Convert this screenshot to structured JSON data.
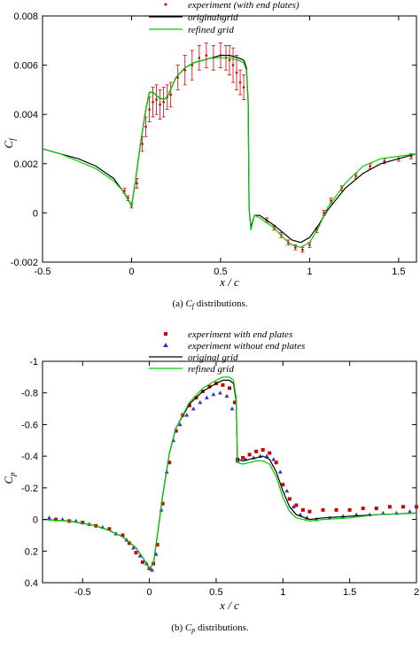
{
  "chart_data": [
    {
      "type": "line",
      "ylabel": "C_f",
      "xlabel": "x / c",
      "xlim": [
        -0.5,
        1.6
      ],
      "ylim": [
        -0.002,
        0.008
      ],
      "xticks": [
        "-0.5",
        "0",
        "0.5",
        "1",
        "1.5"
      ],
      "xtick_values": [
        -0.5,
        0,
        0.5,
        1,
        1.5
      ],
      "yticks": [
        "-0.002",
        "0",
        "0.002",
        "0.004",
        "0.006",
        "0.008"
      ],
      "ytick_values": [
        -0.002,
        0,
        0.002,
        0.004,
        0.006,
        0.008
      ],
      "caption_prefix": "(a) ",
      "caption_sym": "C",
      "caption_sub": "f",
      "caption_suffix": " distributions.",
      "legend_placement": "top-center",
      "series": [
        {
          "name": "experiment (with end plates)",
          "kind": "scatter-errorbar",
          "color": "#cc0000",
          "x": [
            -0.04,
            -0.02,
            0.0,
            0.03,
            0.06,
            0.08,
            0.1,
            0.12,
            0.14,
            0.16,
            0.18,
            0.2,
            0.22,
            0.26,
            0.3,
            0.34,
            0.38,
            0.42,
            0.46,
            0.5,
            0.53,
            0.55,
            0.57,
            0.59,
            0.61,
            0.63,
            0.76,
            0.8,
            0.84,
            0.88,
            0.92,
            0.96,
            1.0,
            1.04,
            1.08,
            1.12,
            1.18,
            1.26,
            1.34,
            1.42,
            1.5,
            1.57
          ],
          "y": [
            0.0009,
            0.0006,
            0.0003,
            0.0012,
            0.0028,
            0.0035,
            0.0042,
            0.0045,
            0.0046,
            0.0044,
            0.0045,
            0.0047,
            0.0048,
            0.0055,
            0.0058,
            0.006,
            0.0063,
            0.0064,
            0.0063,
            0.0064,
            0.0063,
            0.0062,
            0.006,
            0.0057,
            0.0053,
            0.0051,
            -0.0003,
            -0.0006,
            -0.0009,
            -0.0012,
            -0.0014,
            -0.0015,
            -0.0013,
            -0.0007,
            0.0,
            0.0005,
            0.001,
            0.0015,
            0.0019,
            0.0021,
            0.0022,
            0.0023
          ],
          "err": [
            0.0001,
            0.0001,
            0.0001,
            0.0002,
            0.0003,
            0.0004,
            0.0005,
            0.0006,
            0.0006,
            0.0006,
            0.0006,
            0.0005,
            0.0005,
            0.0005,
            0.0006,
            0.0006,
            0.0005,
            0.0005,
            0.0005,
            0.0005,
            0.0005,
            0.0006,
            0.0007,
            0.0007,
            0.0005,
            0.0005,
            0.0001,
            0.0001,
            0.0001,
            0.0001,
            0.0001,
            0.0001,
            0.0001,
            0.0001,
            0.0001,
            0.0001,
            0.0001,
            0.0001,
            0.0001,
            0.0001,
            0.0001,
            0.0001
          ]
        },
        {
          "name": "original grid",
          "kind": "line",
          "color": "#000000",
          "x": [
            -0.5,
            -0.4,
            -0.3,
            -0.2,
            -0.1,
            -0.05,
            0.0,
            0.02,
            0.05,
            0.08,
            0.1,
            0.12,
            0.15,
            0.18,
            0.2,
            0.25,
            0.3,
            0.35,
            0.4,
            0.45,
            0.5,
            0.55,
            0.6,
            0.63,
            0.645,
            0.655,
            0.66,
            0.67,
            0.69,
            0.72,
            0.76,
            0.8,
            0.85,
            0.9,
            0.95,
            1.0,
            1.05,
            1.1,
            1.2,
            1.3,
            1.4,
            1.5,
            1.6
          ],
          "y": [
            0.0026,
            0.0024,
            0.0022,
            0.0019,
            0.0014,
            0.0009,
            0.0003,
            0.0012,
            0.0028,
            0.0042,
            0.0049,
            0.0049,
            0.0047,
            0.0046,
            0.0047,
            0.0055,
            0.0059,
            0.0061,
            0.0062,
            0.0063,
            0.0064,
            0.0064,
            0.0063,
            0.0062,
            0.0059,
            0.0045,
            0.0002,
            -0.0006,
            -0.0001,
            -0.0001,
            -0.0003,
            -0.0005,
            -0.0008,
            -0.0011,
            -0.0012,
            -0.001,
            -0.0005,
            0.0001,
            0.001,
            0.0016,
            0.002,
            0.0022,
            0.0024
          ]
        },
        {
          "name": "refined grid",
          "kind": "line",
          "color": "#00cc00",
          "x": [
            -0.5,
            -0.4,
            -0.3,
            -0.2,
            -0.1,
            -0.05,
            0.0,
            0.02,
            0.05,
            0.08,
            0.1,
            0.12,
            0.15,
            0.18,
            0.2,
            0.25,
            0.3,
            0.35,
            0.4,
            0.45,
            0.5,
            0.55,
            0.6,
            0.63,
            0.645,
            0.655,
            0.66,
            0.67,
            0.69,
            0.72,
            0.76,
            0.8,
            0.85,
            0.9,
            0.95,
            1.0,
            1.05,
            1.1,
            1.2,
            1.3,
            1.4,
            1.5,
            1.6
          ],
          "y": [
            0.0026,
            0.0024,
            0.0021,
            0.0018,
            0.0013,
            0.0009,
            0.0003,
            0.0012,
            0.0028,
            0.0042,
            0.0049,
            0.0049,
            0.0047,
            0.0046,
            0.0047,
            0.0055,
            0.0059,
            0.0061,
            0.0062,
            0.0063,
            0.0063,
            0.0063,
            0.0062,
            0.0061,
            0.0058,
            0.0044,
            0.0002,
            -0.0007,
            -0.0001,
            -0.0002,
            -0.0004,
            -0.0006,
            -0.001,
            -0.0013,
            -0.0014,
            -0.0012,
            -0.0006,
            0.0002,
            0.0012,
            0.0019,
            0.0022,
            0.0023,
            0.0024
          ]
        }
      ]
    },
    {
      "type": "line",
      "ylabel": "C_p",
      "xlabel": "x / c",
      "xlim": [
        -0.8,
        2.0
      ],
      "ylim": [
        0.4,
        -1.0
      ],
      "y_inverted": true,
      "xticks": [
        "-0.5",
        "0",
        "0.5",
        "1",
        "1.5",
        "2"
      ],
      "xtick_values": [
        -0.5,
        0,
        0.5,
        1,
        1.5,
        2
      ],
      "yticks": [
        "-1",
        "-0.8",
        "-0.6",
        "-0.4",
        "-0.2",
        "0",
        "0.2",
        "0.4"
      ],
      "ytick_values": [
        -1,
        -0.8,
        -0.6,
        -0.4,
        -0.2,
        0,
        0.2,
        0.4
      ],
      "caption_prefix": "(b) ",
      "caption_sym": "C",
      "caption_sub": "p",
      "caption_suffix": " distributions.",
      "legend_placement": "top-center",
      "series": [
        {
          "name": "experiment with end plates",
          "kind": "scatter-square",
          "color": "#cc0000",
          "x": [
            -0.7,
            -0.6,
            -0.5,
            -0.4,
            -0.3,
            -0.2,
            -0.15,
            -0.1,
            -0.05,
            0.0,
            0.03,
            0.06,
            0.1,
            0.15,
            0.2,
            0.25,
            0.3,
            0.35,
            0.4,
            0.45,
            0.5,
            0.55,
            0.6,
            0.64,
            0.66,
            0.7,
            0.75,
            0.8,
            0.85,
            0.9,
            0.95,
            1.0,
            1.05,
            1.1,
            1.15,
            1.2,
            1.3,
            1.4,
            1.5,
            1.6,
            1.7,
            1.8,
            1.9,
            2.0
          ],
          "y": [
            0.0,
            0.01,
            0.02,
            0.04,
            0.06,
            0.1,
            0.15,
            0.21,
            0.27,
            0.31,
            0.28,
            0.16,
            -0.1,
            -0.36,
            -0.56,
            -0.66,
            -0.72,
            -0.77,
            -0.81,
            -0.84,
            -0.86,
            -0.85,
            -0.83,
            -0.74,
            -0.38,
            -0.39,
            -0.41,
            -0.43,
            -0.44,
            -0.42,
            -0.36,
            -0.22,
            -0.13,
            -0.09,
            -0.06,
            -0.05,
            -0.06,
            -0.06,
            -0.06,
            -0.07,
            -0.07,
            -0.08,
            -0.08,
            -0.08
          ]
        },
        {
          "name": "experiment without end plates",
          "kind": "scatter-triangle",
          "color": "#3333cc",
          "x": [
            -0.75,
            -0.65,
            -0.55,
            -0.45,
            -0.35,
            -0.25,
            -0.17,
            -0.12,
            -0.07,
            -0.02,
            0.02,
            0.05,
            0.09,
            0.13,
            0.18,
            0.23,
            0.28,
            0.33,
            0.38,
            0.43,
            0.48,
            0.53,
            0.58,
            0.62,
            0.66,
            0.72,
            0.78,
            0.83,
            0.88,
            0.93,
            0.98,
            1.03,
            1.08,
            1.13,
            1.18,
            1.25,
            1.35,
            1.45,
            1.55,
            1.65,
            1.75,
            1.85,
            1.95
          ],
          "y": [
            -0.01,
            0.0,
            0.01,
            0.03,
            0.05,
            0.09,
            0.13,
            0.18,
            0.23,
            0.28,
            0.32,
            0.22,
            -0.06,
            -0.3,
            -0.5,
            -0.6,
            -0.66,
            -0.7,
            -0.74,
            -0.77,
            -0.79,
            -0.8,
            -0.78,
            -0.7,
            -0.37,
            -0.38,
            -0.39,
            -0.4,
            -0.4,
            -0.38,
            -0.3,
            -0.18,
            -0.08,
            -0.03,
            -0.01,
            0.0,
            -0.01,
            -0.02,
            -0.03,
            -0.03,
            -0.04,
            -0.04,
            -0.05
          ]
        },
        {
          "name": "original grid",
          "kind": "line",
          "color": "#000000",
          "x": [
            -0.8,
            -0.6,
            -0.4,
            -0.3,
            -0.2,
            -0.1,
            -0.05,
            0.0,
            0.03,
            0.06,
            0.1,
            0.15,
            0.2,
            0.3,
            0.4,
            0.5,
            0.55,
            0.6,
            0.63,
            0.65,
            0.66,
            0.7,
            0.75,
            0.8,
            0.85,
            0.9,
            0.95,
            1.0,
            1.05,
            1.1,
            1.2,
            1.3,
            1.5,
            1.7,
            2.0
          ],
          "y": [
            0.0,
            0.01,
            0.04,
            0.07,
            0.11,
            0.18,
            0.24,
            0.31,
            0.28,
            0.1,
            -0.15,
            -0.42,
            -0.58,
            -0.73,
            -0.81,
            -0.86,
            -0.88,
            -0.88,
            -0.86,
            -0.75,
            -0.38,
            -0.37,
            -0.38,
            -0.39,
            -0.4,
            -0.38,
            -0.3,
            -0.18,
            -0.08,
            -0.03,
            0.0,
            -0.01,
            -0.02,
            -0.03,
            -0.04
          ]
        },
        {
          "name": "refined grid",
          "kind": "line",
          "color": "#00cc00",
          "x": [
            -0.8,
            -0.6,
            -0.4,
            -0.3,
            -0.2,
            -0.1,
            -0.05,
            0.0,
            0.03,
            0.06,
            0.1,
            0.15,
            0.2,
            0.3,
            0.4,
            0.5,
            0.55,
            0.6,
            0.63,
            0.65,
            0.66,
            0.7,
            0.75,
            0.8,
            0.85,
            0.9,
            0.95,
            1.0,
            1.05,
            1.1,
            1.2,
            1.3,
            1.5,
            1.7,
            2.0
          ],
          "y": [
            0.0,
            0.01,
            0.04,
            0.07,
            0.11,
            0.18,
            0.24,
            0.31,
            0.28,
            0.1,
            -0.15,
            -0.42,
            -0.58,
            -0.74,
            -0.83,
            -0.88,
            -0.9,
            -0.9,
            -0.88,
            -0.77,
            -0.36,
            -0.35,
            -0.36,
            -0.37,
            -0.37,
            -0.35,
            -0.27,
            -0.14,
            -0.05,
            -0.01,
            0.01,
            0.0,
            -0.01,
            -0.03,
            -0.04
          ]
        }
      ]
    }
  ]
}
